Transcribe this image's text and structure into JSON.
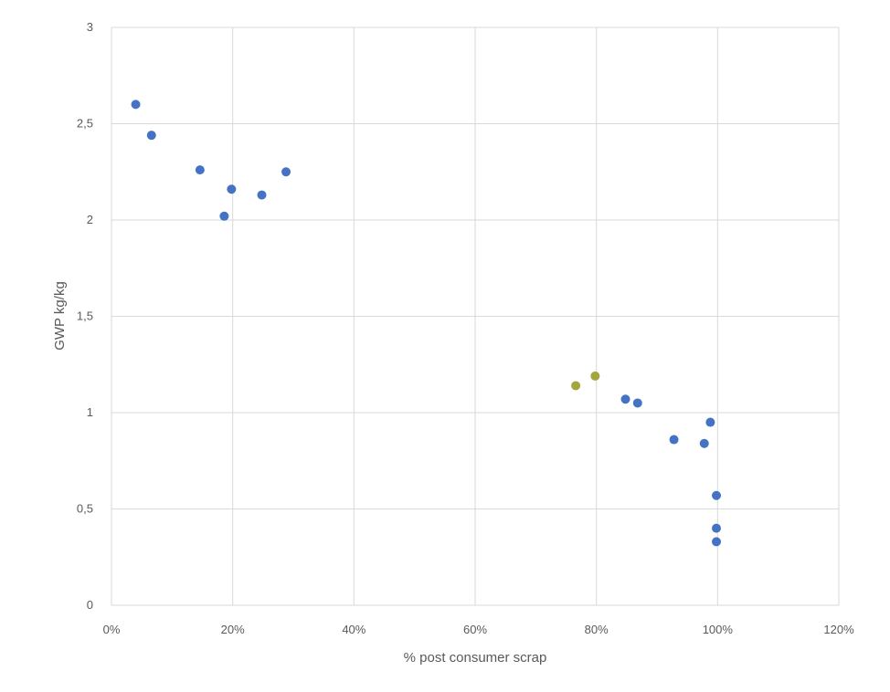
{
  "chart_data": {
    "type": "scatter",
    "title": "",
    "xlabel": "% post consumer scrap",
    "ylabel": "GWP kg/kg",
    "xlim": [
      0,
      1.2
    ],
    "ylim": [
      0,
      3
    ],
    "x_ticks": [
      0,
      0.2,
      0.4,
      0.6,
      0.8,
      1.0,
      1.2
    ],
    "x_tick_labels": [
      "0%",
      "20%",
      "40%",
      "60%",
      "80%",
      "100%",
      "120%"
    ],
    "y_ticks": [
      0,
      0.5,
      1,
      1.5,
      2,
      2.5,
      3
    ],
    "y_tick_labels": [
      "0",
      "0,5",
      "1",
      "1,5",
      "2",
      "2,5",
      "3"
    ],
    "grid": true,
    "legend": "none",
    "series": [
      {
        "color": "#4472c4",
        "points": [
          {
            "x": 0.04,
            "y": 2.6
          },
          {
            "x": 0.066,
            "y": 2.44
          },
          {
            "x": 0.146,
            "y": 2.26
          },
          {
            "x": 0.186,
            "y": 2.02
          },
          {
            "x": 0.198,
            "y": 2.16
          },
          {
            "x": 0.248,
            "y": 2.13
          },
          {
            "x": 0.288,
            "y": 2.25
          },
          {
            "x": 0.848,
            "y": 1.07
          },
          {
            "x": 0.868,
            "y": 1.05
          },
          {
            "x": 0.928,
            "y": 0.86
          },
          {
            "x": 0.978,
            "y": 0.84
          },
          {
            "x": 0.988,
            "y": 0.95
          },
          {
            "x": 0.998,
            "y": 0.57
          },
          {
            "x": 0.998,
            "y": 0.4
          },
          {
            "x": 0.998,
            "y": 0.33
          }
        ]
      },
      {
        "color": "#a5a540",
        "points": [
          {
            "x": 0.766,
            "y": 1.14
          },
          {
            "x": 0.798,
            "y": 1.19
          }
        ]
      }
    ]
  }
}
